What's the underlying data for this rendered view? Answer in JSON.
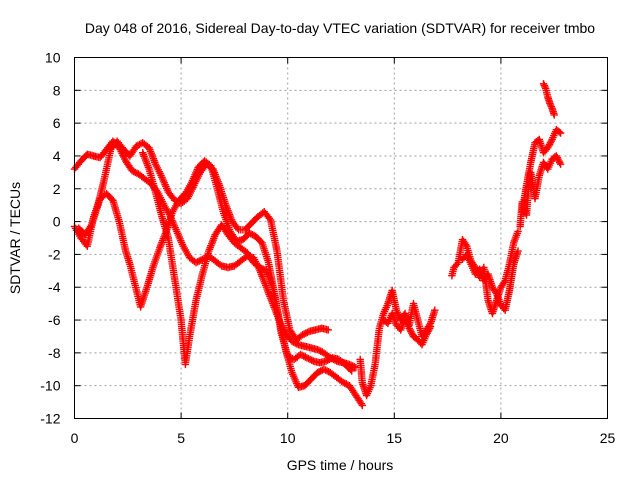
{
  "chart_data": {
    "type": "scatter",
    "title": "Day 048 of 2016, Sidereal Day-to-day VTEC variation (SDTVAR) for receiver tmbo",
    "xlabel": "GPS time / hours",
    "ylabel": "SDTVAR / TECUs",
    "xlim": [
      0,
      25
    ],
    "ylim": [
      -12,
      10
    ],
    "xticks": [
      0,
      5,
      10,
      15,
      20,
      25
    ],
    "yticks": [
      -12,
      -10,
      -8,
      -6,
      -4,
      -2,
      0,
      2,
      4,
      6,
      8,
      10
    ],
    "xtick_labels": [
      "0",
      "5",
      "10",
      "15",
      "20",
      "25"
    ],
    "ytick_labels": [
      "-12",
      "-10",
      "-8",
      "-6",
      "-4",
      "-2",
      "0",
      "2",
      "4",
      "6",
      "8",
      "10"
    ],
    "grid": true,
    "marker": "plus",
    "color": "#ff0000",
    "series": [
      {
        "values": [
          [
            0.0,
            3.2
          ],
          [
            0.3,
            3.7
          ],
          [
            0.6,
            4.1
          ],
          [
            0.9,
            4.0
          ],
          [
            1.2,
            3.9
          ],
          [
            1.5,
            4.4
          ],
          [
            1.8,
            4.9
          ],
          [
            2.1,
            4.5
          ],
          [
            2.4,
            3.7
          ],
          [
            2.7,
            3.1
          ],
          [
            3.0,
            2.9
          ],
          [
            3.3,
            2.6
          ],
          [
            3.6,
            2.3
          ],
          [
            3.9,
            1.8
          ],
          [
            4.2,
            1.0
          ],
          [
            4.5,
            0.3
          ],
          [
            4.8,
            -0.6
          ],
          [
            5.1,
            -1.5
          ],
          [
            5.4,
            -2.2
          ],
          [
            5.7,
            -2.5
          ],
          [
            6.0,
            -2.3
          ],
          [
            6.3,
            -2.1
          ],
          [
            6.6,
            -2.4
          ],
          [
            6.9,
            -2.7
          ],
          [
            7.2,
            -2.8
          ],
          [
            7.5,
            -2.7
          ],
          [
            7.8,
            -2.4
          ],
          [
            8.1,
            -2.1
          ],
          [
            8.4,
            -2.2
          ],
          [
            8.7,
            -3.0
          ],
          [
            9.0,
            -4.0
          ],
          [
            9.3,
            -5.0
          ],
          [
            9.6,
            -6.0
          ],
          [
            9.9,
            -6.8
          ],
          [
            10.2,
            -7.3
          ],
          [
            10.5,
            -7.5
          ],
          [
            10.8,
            -7.6
          ],
          [
            11.1,
            -7.7
          ],
          [
            11.4,
            -7.8
          ],
          [
            11.7,
            -8.0
          ],
          [
            12.0,
            -8.3
          ],
          [
            12.3,
            -8.5
          ],
          [
            12.6,
            -8.6
          ],
          [
            12.9,
            -8.7
          ],
          [
            13.2,
            -8.9
          ]
        ]
      },
      {
        "values": [
          [
            0.2,
            -0.4
          ],
          [
            0.5,
            -0.8
          ],
          [
            0.8,
            -0.2
          ],
          [
            1.1,
            1.0
          ],
          [
            1.4,
            2.6
          ],
          [
            1.7,
            4.4
          ],
          [
            2.0,
            4.9
          ],
          [
            2.3,
            4.4
          ],
          [
            2.6,
            4.0
          ],
          [
            2.9,
            4.6
          ],
          [
            3.2,
            4.8
          ],
          [
            3.5,
            4.5
          ],
          [
            3.8,
            3.5
          ],
          [
            4.1,
            2.7
          ],
          [
            4.4,
            1.8
          ],
          [
            4.7,
            1.3
          ],
          [
            5.0,
            1.1
          ],
          [
            5.3,
            1.4
          ],
          [
            5.6,
            2.2
          ],
          [
            5.9,
            3.0
          ],
          [
            6.2,
            3.5
          ],
          [
            6.5,
            3.2
          ],
          [
            6.8,
            2.2
          ],
          [
            7.1,
            1.0
          ],
          [
            7.4,
            0.0
          ],
          [
            7.7,
            -0.5
          ],
          [
            8.0,
            -0.5
          ],
          [
            8.3,
            -0.1
          ],
          [
            8.6,
            0.3
          ],
          [
            8.9,
            0.6
          ],
          [
            9.2,
            0.1
          ],
          [
            9.5,
            -1.8
          ],
          [
            9.8,
            -4.8
          ],
          [
            10.1,
            -6.6
          ],
          [
            10.4,
            -7.2
          ],
          [
            10.7,
            -6.9
          ],
          [
            11.0,
            -6.7
          ],
          [
            11.3,
            -6.6
          ],
          [
            11.6,
            -6.5
          ],
          [
            11.9,
            -6.6
          ]
        ]
      },
      {
        "values": [
          [
            0.0,
            -0.3
          ],
          [
            0.3,
            -1.0
          ],
          [
            0.6,
            -1.5
          ],
          [
            0.9,
            0.3
          ],
          [
            1.2,
            1.4
          ],
          [
            1.5,
            1.7
          ],
          [
            1.8,
            1.3
          ],
          [
            2.1,
            0.0
          ],
          [
            2.4,
            -1.8
          ],
          [
            2.6,
            -2.6
          ],
          [
            3.1,
            -5.2
          ],
          [
            3.4,
            -4.0
          ],
          [
            3.7,
            -2.7
          ],
          [
            4.0,
            -1.6
          ],
          [
            4.3,
            -0.6
          ],
          [
            4.6,
            0.6
          ],
          [
            4.9,
            1.3
          ],
          [
            5.2,
            1.7
          ],
          [
            5.5,
            2.4
          ],
          [
            5.8,
            3.3
          ],
          [
            6.1,
            3.7
          ],
          [
            6.4,
            3.4
          ],
          [
            6.7,
            2.0
          ],
          [
            7.0,
            0.5
          ],
          [
            7.3,
            -0.6
          ],
          [
            7.6,
            -1.2
          ],
          [
            7.9,
            -1.1
          ],
          [
            8.2,
            -0.7
          ],
          [
            8.5,
            -0.9
          ],
          [
            8.8,
            -1.3
          ],
          [
            9.1,
            -2.5
          ],
          [
            9.4,
            -4.5
          ],
          [
            9.7,
            -6.8
          ],
          [
            10.0,
            -8.2
          ],
          [
            10.3,
            -8.4
          ],
          [
            10.6,
            -8.1
          ],
          [
            10.9,
            -8.3
          ],
          [
            11.2,
            -8.5
          ],
          [
            11.5,
            -8.6
          ],
          [
            11.8,
            -8.5
          ],
          [
            12.1,
            -8.3
          ],
          [
            12.4,
            -8.4
          ],
          [
            12.7,
            -8.7
          ],
          [
            13.0,
            -9.1
          ]
        ]
      },
      {
        "values": [
          [
            3.2,
            4.2
          ],
          [
            3.5,
            3.2
          ],
          [
            3.8,
            1.8
          ],
          [
            4.1,
            0.3
          ],
          [
            4.4,
            -1.0
          ],
          [
            4.7,
            -3.5
          ],
          [
            5.0,
            -6.0
          ],
          [
            5.2,
            -8.7
          ],
          [
            5.4,
            -7.0
          ],
          [
            5.7,
            -4.8
          ],
          [
            6.0,
            -3.2
          ],
          [
            6.3,
            -1.8
          ],
          [
            6.6,
            -0.8
          ],
          [
            6.9,
            -0.2
          ],
          [
            7.2,
            -0.8
          ],
          [
            7.5,
            -1.3
          ],
          [
            7.8,
            -1.6
          ],
          [
            8.1,
            -1.9
          ],
          [
            8.4,
            -2.5
          ],
          [
            8.7,
            -2.8
          ],
          [
            9.0,
            -3.0
          ],
          [
            9.3,
            -4.0
          ],
          [
            9.6,
            -6.0
          ],
          [
            9.9,
            -7.8
          ],
          [
            10.2,
            -9.2
          ],
          [
            10.5,
            -10.1
          ],
          [
            10.8,
            -10.0
          ],
          [
            11.1,
            -9.6
          ],
          [
            11.4,
            -9.2
          ],
          [
            11.7,
            -9.0
          ],
          [
            12.0,
            -9.2
          ],
          [
            12.3,
            -9.5
          ],
          [
            12.6,
            -9.8
          ],
          [
            12.9,
            -10.0
          ],
          [
            13.2,
            -10.6
          ],
          [
            13.5,
            -11.2
          ]
        ]
      },
      {
        "values": [
          [
            13.4,
            -8.4
          ],
          [
            13.5,
            -9.8
          ],
          [
            13.7,
            -10.6
          ],
          [
            13.9,
            -10.0
          ],
          [
            14.1,
            -8.7
          ],
          [
            14.3,
            -6.5
          ],
          [
            14.5,
            -5.6
          ],
          [
            14.7,
            -5.0
          ],
          [
            14.9,
            -4.2
          ],
          [
            15.1,
            -5.4
          ],
          [
            15.3,
            -6.0
          ],
          [
            15.5,
            -5.6
          ],
          [
            15.7,
            -6.3
          ],
          [
            15.9,
            -5.0
          ],
          [
            16.1,
            -6.0
          ],
          [
            16.3,
            -7.0
          ],
          [
            16.5,
            -6.6
          ],
          [
            16.7,
            -6.2
          ],
          [
            16.9,
            -5.4
          ]
        ]
      },
      {
        "values": [
          [
            14.5,
            -6.0
          ],
          [
            14.7,
            -6.2
          ],
          [
            14.9,
            -5.6
          ],
          [
            15.1,
            -6.3
          ],
          [
            15.3,
            -6.6
          ],
          [
            15.5,
            -5.9
          ],
          [
            15.7,
            -6.5
          ],
          [
            15.9,
            -7.0
          ],
          [
            16.1,
            -7.2
          ],
          [
            16.3,
            -7.5
          ],
          [
            16.5,
            -6.9
          ],
          [
            16.7,
            -6.4
          ]
        ]
      },
      {
        "values": [
          [
            17.7,
            -3.3
          ],
          [
            17.8,
            -2.8
          ],
          [
            18.0,
            -2.5
          ],
          [
            18.2,
            -1.1
          ],
          [
            18.4,
            -1.5
          ],
          [
            18.6,
            -2.4
          ],
          [
            18.8,
            -2.8
          ],
          [
            19.0,
            -3.4
          ],
          [
            19.2,
            -2.8
          ],
          [
            19.4,
            -4.8
          ],
          [
            19.6,
            -5.6
          ],
          [
            19.8,
            -4.8
          ],
          [
            20.0,
            -4.0
          ],
          [
            20.2,
            -3.6
          ],
          [
            20.4,
            -2.6
          ],
          [
            20.6,
            -1.3
          ],
          [
            20.8,
            -0.6
          ]
        ]
      },
      {
        "values": [
          [
            18.2,
            -2.3
          ],
          [
            18.4,
            -2.0
          ],
          [
            18.6,
            -2.6
          ],
          [
            18.8,
            -3.2
          ],
          [
            19.0,
            -2.9
          ],
          [
            19.2,
            -3.6
          ],
          [
            19.4,
            -3.2
          ],
          [
            19.6,
            -4.0
          ],
          [
            19.8,
            -4.4
          ],
          [
            20.0,
            -5.1
          ],
          [
            20.2,
            -5.4
          ],
          [
            20.4,
            -4.2
          ],
          [
            20.6,
            -2.6
          ],
          [
            20.8,
            -1.8
          ]
        ]
      },
      {
        "values": [
          [
            20.9,
            -0.3
          ],
          [
            21.0,
            1.2
          ],
          [
            21.2,
            0.4
          ],
          [
            21.3,
            2.2
          ],
          [
            21.4,
            3.0
          ],
          [
            21.6,
            1.4
          ],
          [
            21.8,
            2.8
          ],
          [
            22.0,
            3.6
          ],
          [
            22.2,
            3.2
          ],
          [
            22.4,
            3.8
          ],
          [
            22.6,
            4.0
          ],
          [
            22.8,
            3.5
          ]
        ]
      },
      {
        "values": [
          [
            21.0,
            0.6
          ],
          [
            21.2,
            2.2
          ],
          [
            21.4,
            3.6
          ],
          [
            21.6,
            4.8
          ],
          [
            21.8,
            5.0
          ],
          [
            22.0,
            4.2
          ],
          [
            22.2,
            4.5
          ],
          [
            22.4,
            5.0
          ],
          [
            22.6,
            5.6
          ],
          [
            22.8,
            5.4
          ]
        ]
      },
      {
        "values": [
          [
            22.0,
            8.4
          ],
          [
            22.1,
            8.1
          ],
          [
            22.2,
            7.6
          ],
          [
            22.3,
            7.2
          ],
          [
            22.4,
            6.9
          ],
          [
            22.5,
            6.5
          ]
        ]
      }
    ]
  }
}
